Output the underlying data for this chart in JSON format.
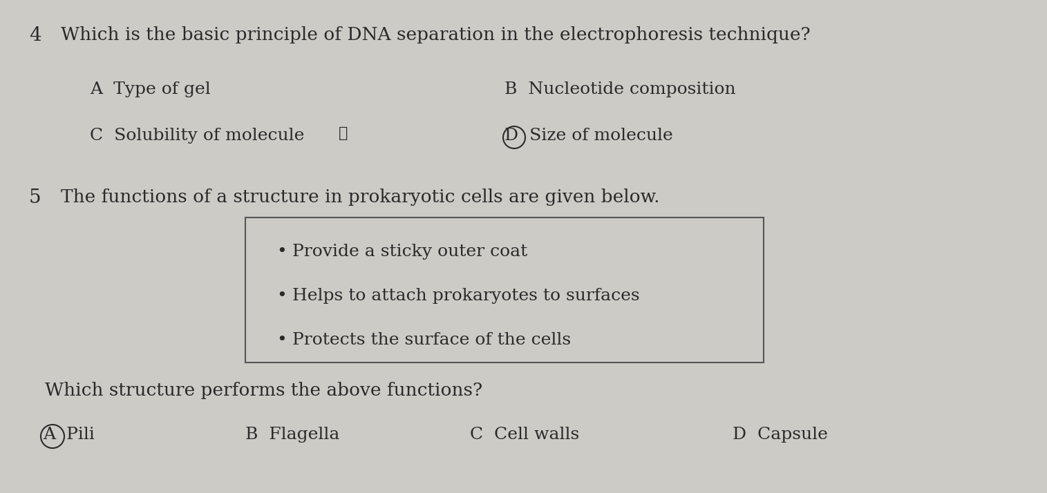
{
  "bg_color": "#cccbc6",
  "q4_number": "4",
  "q4_text": "Which is the basic principle of DNA separation in the electrophoresis technique?",
  "q4_A": "Type of gel",
  "q4_B": "Nucleotide composition",
  "q4_C": "Solubility of molecule",
  "q4_D": "Size of molecule",
  "q5_number": "5",
  "q5_text": "The functions of a structure in prokaryotic cells are given below.",
  "q5_bullet1": "Provide a sticky outer coat",
  "q5_bullet2": "Helps to attach prokaryotes to surfaces",
  "q5_bullet3": "Protects the surface of the cells",
  "q5_sub": "Which structure performs the above functions?",
  "q5_A": "Pili",
  "q5_B": "Flagella",
  "q5_C": "Cell walls",
  "q5_D": "Capsule",
  "text_color": "#2a2a2a",
  "box_edge_color": "#555555",
  "fs_q": 19,
  "fs_opt": 18,
  "fs_num": 20
}
